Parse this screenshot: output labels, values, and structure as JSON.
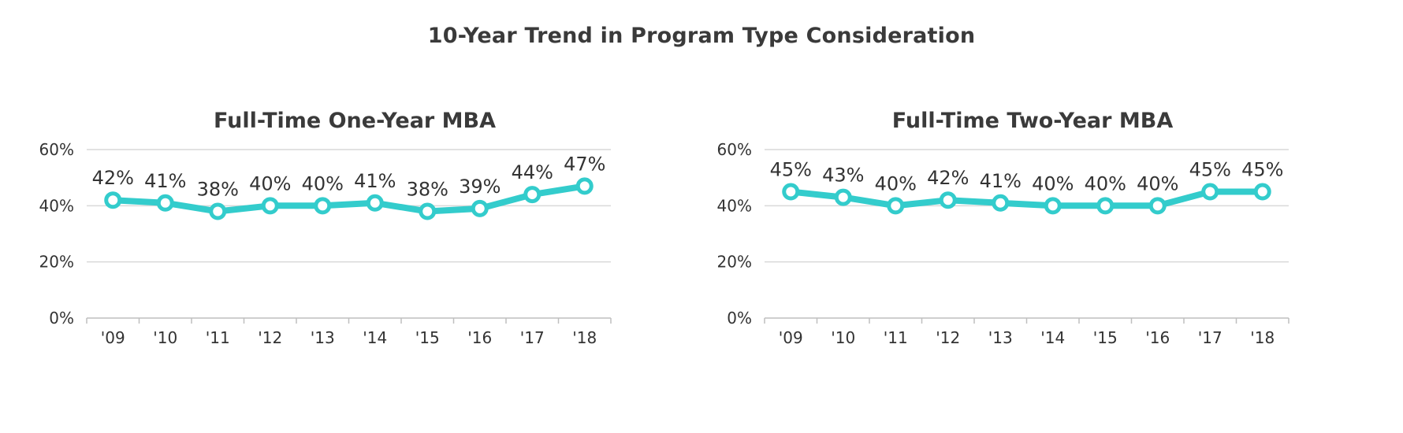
{
  "title": "10-Year Trend in Program Type Consideration",
  "colors": {
    "line": "#33cccc",
    "grid": "#d9d9d9",
    "axis": "#bfbfbf",
    "text": "#333333"
  },
  "chart_data": [
    {
      "type": "line",
      "title": "Full-Time One-Year MBA",
      "categories": [
        "'09",
        "'10",
        "'11",
        "'12",
        "'13",
        "'14",
        "'15",
        "'16",
        "'17",
        "'18"
      ],
      "values": [
        42,
        41,
        38,
        40,
        40,
        41,
        38,
        39,
        44,
        47
      ],
      "data_labels": [
        "42%",
        "41%",
        "38%",
        "40%",
        "40%",
        "41%",
        "38%",
        "39%",
        "44%",
        "47%"
      ],
      "yticks": [
        "0%",
        "20%",
        "40%",
        "60%"
      ],
      "ylim": [
        0,
        60
      ],
      "grid": true,
      "legend": "none"
    },
    {
      "type": "line",
      "title": "Full-Time Two-Year MBA",
      "categories": [
        "'09",
        "'10",
        "'11",
        "'12",
        "'13",
        "'14",
        "'15",
        "'16",
        "'17",
        "'18"
      ],
      "values": [
        45,
        43,
        40,
        42,
        41,
        40,
        40,
        40,
        45,
        45
      ],
      "data_labels": [
        "45%",
        "43%",
        "40%",
        "42%",
        "41%",
        "40%",
        "40%",
        "40%",
        "45%",
        "45%"
      ],
      "yticks": [
        "0%",
        "20%",
        "40%",
        "60%"
      ],
      "ylim": [
        0,
        60
      ],
      "grid": true,
      "legend": "none"
    }
  ]
}
